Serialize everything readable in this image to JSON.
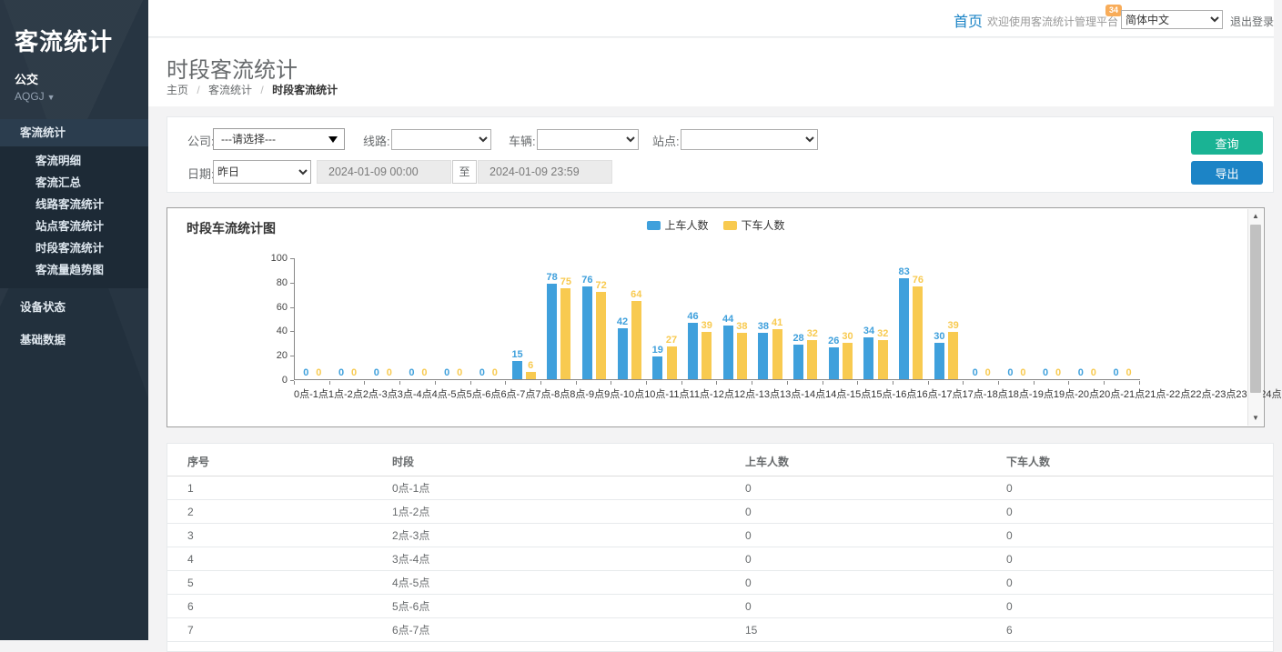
{
  "sidebar": {
    "logo": "客流统计",
    "org": "公交",
    "org_code": "AQGJ",
    "menu_open": {
      "label": "客流统计",
      "children": [
        "客流明细",
        "客流汇总",
        "线路客流统计",
        "站点客流统计",
        "时段客流统计",
        "客流量趋势图"
      ]
    },
    "menu_items": [
      "设备状态",
      "基础数据"
    ]
  },
  "header": {
    "home": "首页",
    "welcome": "欢迎使用客流统计管理平台",
    "badge": "34",
    "language": "简体中文",
    "logout": "退出登录"
  },
  "page": {
    "title": "时段客流统计",
    "breadcrumb": [
      "主页",
      "客流统计",
      "时段客流统计"
    ]
  },
  "filters": {
    "company_label": "公司:",
    "company_value": "---请选择---",
    "line_label": "线路:",
    "vehicle_label": "车辆:",
    "station_label": "站点:",
    "date_label": "日期:",
    "date_preset": "昨日",
    "date_from": "2024-01-09 00:00",
    "range_separator": "至",
    "date_to": "2024-01-09 23:59",
    "query_button": "查询",
    "export_button": "导出"
  },
  "chart_data": {
    "type": "bar",
    "title": "时段车流统计图",
    "categories": [
      "0点-1点",
      "1点-2点",
      "2点-3点",
      "3点-4点",
      "4点-5点",
      "5点-6点",
      "6点-7点",
      "7点-8点",
      "8点-9点",
      "9点-10点",
      "10点-11点",
      "11点-12点",
      "12点-13点",
      "13点-14点",
      "14点-15点",
      "15点-16点",
      "16点-17点",
      "17点-18点",
      "18点-19点",
      "19点-20点",
      "20点-21点",
      "21点-22点",
      "22点-23点",
      "23点-24点"
    ],
    "series": [
      {
        "name": "上车人数",
        "color": "#3fa0dc",
        "values": [
          0,
          0,
          0,
          0,
          0,
          0,
          15,
          78,
          76,
          42,
          19,
          46,
          44,
          38,
          28,
          26,
          34,
          83,
          30,
          0,
          0,
          0,
          0,
          0
        ]
      },
      {
        "name": "下车人数",
        "color": "#f8ca50",
        "values": [
          0,
          0,
          0,
          0,
          0,
          0,
          6,
          75,
          72,
          64,
          27,
          39,
          38,
          41,
          32,
          30,
          32,
          76,
          39,
          0,
          0,
          0,
          0,
          0
        ]
      }
    ],
    "ylim": [
      0,
      100
    ],
    "yticks": [
      0,
      20,
      40,
      60,
      80,
      100
    ],
    "legend_position": "top-center",
    "grid": false,
    "value_labels": true
  },
  "table": {
    "columns": [
      "序号",
      "时段",
      "上车人数",
      "下车人数"
    ],
    "rows": [
      [
        "1",
        "0点-1点",
        "0",
        "0"
      ],
      [
        "2",
        "1点-2点",
        "0",
        "0"
      ],
      [
        "3",
        "2点-3点",
        "0",
        "0"
      ],
      [
        "4",
        "3点-4点",
        "0",
        "0"
      ],
      [
        "5",
        "4点-5点",
        "0",
        "0"
      ],
      [
        "6",
        "5点-6点",
        "0",
        "0"
      ],
      [
        "7",
        "6点-7点",
        "15",
        "6"
      ]
    ]
  },
  "colors": {
    "accent_blue": "#1c84c6",
    "accent_green": "#1ab394",
    "badge_orange": "#f8ac59",
    "bar_blue": "#3fa0dc",
    "bar_yellow": "#f8ca50",
    "sidebar_bg": "#22303d"
  }
}
